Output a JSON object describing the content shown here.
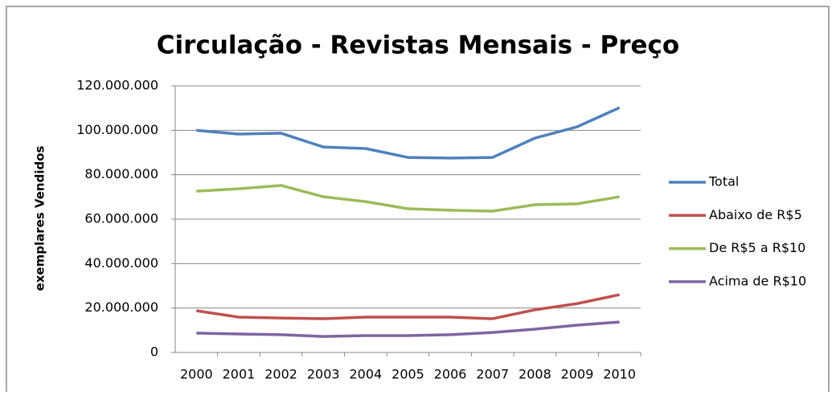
{
  "chart_data": {
    "type": "line",
    "title": "Circulação - Revistas Mensais - Preço",
    "y_label": "exemplares Vendidos",
    "categories": [
      "2000",
      "2001",
      "2002",
      "2003",
      "2004",
      "2005",
      "2006",
      "2007",
      "2008",
      "2009",
      "2010"
    ],
    "series": [
      {
        "name": "Total",
        "color": "#4f81bd",
        "values": [
          100000000,
          98300000,
          98700000,
          92500000,
          91800000,
          87800000,
          87500000,
          87800000,
          96500000,
          101600000,
          110200000
        ]
      },
      {
        "name": "Abaixo de R$5",
        "color": "#c0504d",
        "values": [
          18800000,
          15900000,
          15500000,
          15200000,
          15900000,
          15900000,
          15900000,
          15200000,
          19200000,
          22000000,
          26000000
        ]
      },
      {
        "name": "De R$5 a R$10",
        "color": "#9bbb59",
        "values": [
          72600000,
          73700000,
          75200000,
          70100000,
          67900000,
          64700000,
          64000000,
          63600000,
          66500000,
          66900000,
          70100000
        ]
      },
      {
        "name": "Acima de R$10",
        "color": "#8064a2",
        "values": [
          8700000,
          8300000,
          8000000,
          7200000,
          7600000,
          7600000,
          8000000,
          9000000,
          10500000,
          12300000,
          13700000
        ]
      }
    ],
    "ylim": [
      0,
      120000000
    ],
    "yticks": [
      0,
      {
        "value": 20000000,
        "label": "20.000.000"
      },
      {
        "value": 40000000,
        "label": "40.000.000"
      },
      {
        "value": 60000000,
        "label": "60.000.000"
      },
      {
        "value": 80000000,
        "label": "80.000.000"
      },
      {
        "value": 100000000,
        "label": "100.000.000"
      },
      {
        "value": 120000000,
        "label": "120.000.000"
      }
    ],
    "grid": true,
    "legend": "right"
  }
}
